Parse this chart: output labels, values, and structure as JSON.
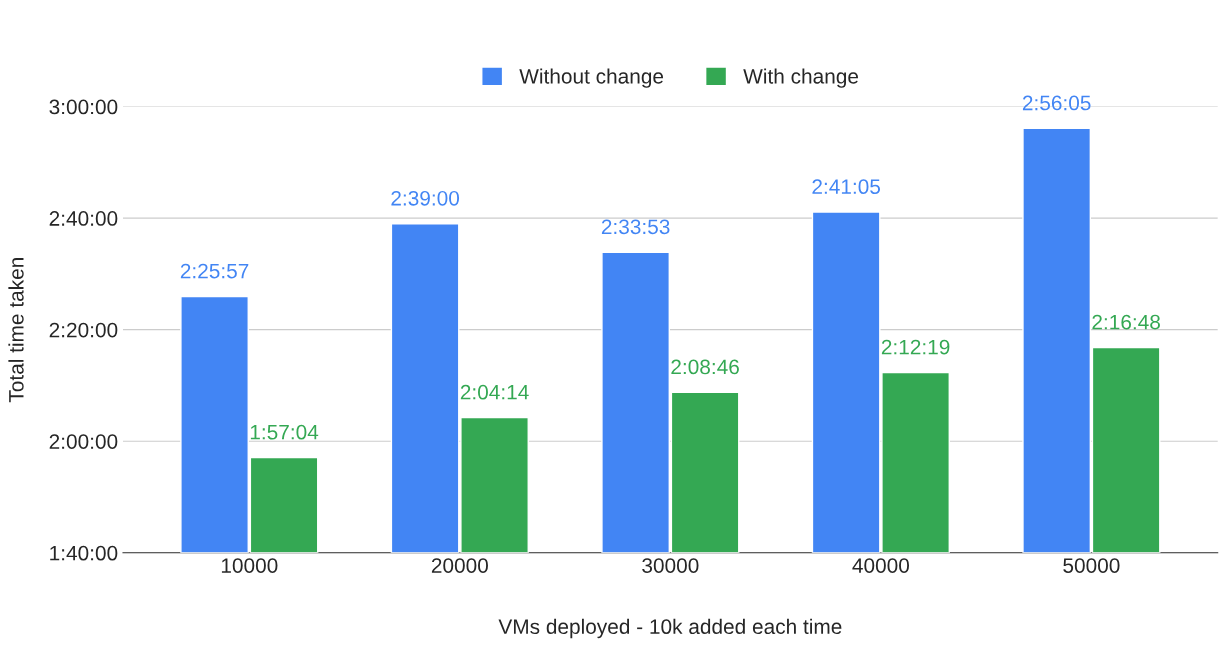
{
  "chart_data": {
    "type": "bar",
    "xlabel": "VMs deployed - 10k added each time",
    "ylabel": "Total time taken",
    "categories": [
      "10000",
      "20000",
      "30000",
      "40000",
      "50000"
    ],
    "series": [
      {
        "name": "Without change",
        "color": "#4285f4",
        "values": [
          8757,
          9540,
          9233,
          9665,
          10565
        ],
        "value_labels": [
          "2:25:57",
          "2:39:00",
          "2:33:53",
          "2:41:05",
          "2:56:05"
        ]
      },
      {
        "name": "With change",
        "color": "#34a853",
        "values": [
          7024,
          7454,
          7726,
          7939,
          8208
        ],
        "value_labels": [
          "1:57:04",
          "2:04:14",
          "2:08:46",
          "2:12:19",
          "2:16:48"
        ]
      }
    ],
    "ylim": [
      6000,
      10800
    ],
    "yticks": [
      {
        "value": 6000,
        "label": "1:40:00"
      },
      {
        "value": 7200,
        "label": "2:00:00"
      },
      {
        "value": 8400,
        "label": "2:20:00"
      },
      {
        "value": 9600,
        "label": "2:40:00"
      },
      {
        "value": 10800,
        "label": "3:00:00"
      }
    ],
    "grid": "y",
    "legend": "top"
  }
}
